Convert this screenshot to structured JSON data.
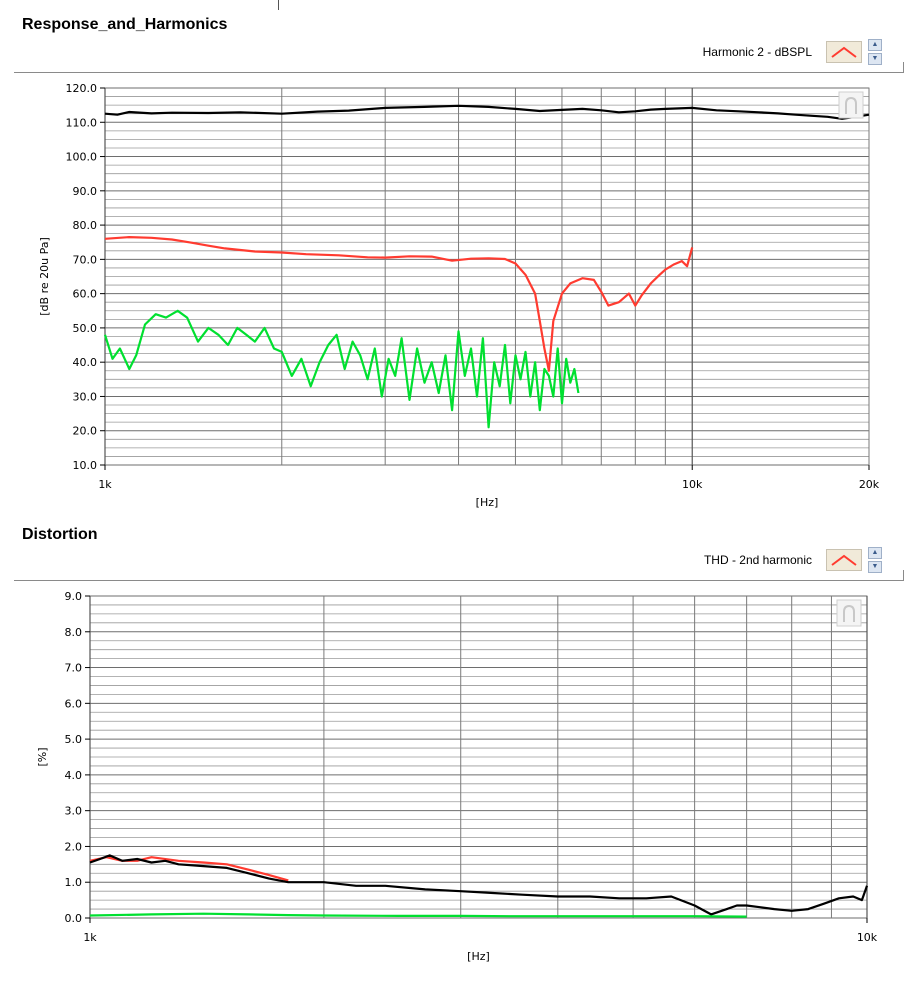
{
  "panels": [
    {
      "title": "Response_and_Harmonics",
      "legend_label": "Harmonic 2 - dBSPL",
      "legend_color": "#ff3b30"
    },
    {
      "title": "Distortion",
      "legend_label": "THD - 2nd harmonic",
      "legend_color": "#ff3b30"
    }
  ],
  "chart_data": [
    {
      "type": "line",
      "xlabel": "[Hz]",
      "ylabel": "[dB re 20u Pa]",
      "xscale": "log",
      "xlim": [
        1000,
        20000
      ],
      "ylim": [
        10,
        120
      ],
      "ytick_labels": [
        "10.0",
        "20.0",
        "30.0",
        "40.0",
        "50.0",
        "60.0",
        "70.0",
        "80.0",
        "90.0",
        "100.0",
        "110.0",
        "120.0"
      ],
      "xtick_labels": [
        "1k",
        "10k",
        "20k"
      ],
      "grid": true,
      "series": [
        {
          "color": "#000000",
          "x": [
            1000,
            1050,
            1100,
            1200,
            1300,
            1500,
            1700,
            2000,
            2300,
            2600,
            3000,
            3500,
            4000,
            4500,
            5000,
            5500,
            6000,
            6500,
            7000,
            7500,
            8000,
            8500,
            9000,
            10000,
            11000,
            12000,
            13000,
            14000,
            15000,
            16000,
            17000,
            18000,
            19000,
            20000
          ],
          "y": [
            112.5,
            112.2,
            113,
            112.6,
            112.8,
            112.7,
            112.9,
            112.5,
            113.1,
            113.4,
            114.2,
            114.5,
            114.8,
            114.5,
            113.9,
            113.3,
            113.6,
            113.9,
            113.5,
            112.9,
            113.2,
            113.7,
            113.9,
            114.2,
            113.5,
            113.2,
            112.9,
            112.6,
            112.2,
            111.9,
            111.6,
            111.0,
            111.6,
            112.2
          ]
        },
        {
          "color": "#ff3b30",
          "x": [
            1000,
            1100,
            1200,
            1300,
            1400,
            1500,
            1600,
            1800,
            2000,
            2200,
            2500,
            2800,
            3000,
            3300,
            3600,
            3900,
            4200,
            4500,
            4800,
            5000,
            5200,
            5400,
            5500,
            5600,
            5700,
            5800,
            6000,
            6200,
            6500,
            6800,
            7000,
            7200,
            7500,
            7800,
            8000,
            8200,
            8500,
            8800,
            9000,
            9300,
            9600,
            9800,
            10000
          ],
          "y": [
            76,
            76.5,
            76.3,
            75.8,
            74.9,
            74,
            73.2,
            72.3,
            72,
            71.5,
            71.2,
            70.6,
            70.5,
            70.9,
            70.8,
            69.6,
            70.2,
            70.3,
            70.1,
            68.8,
            65.5,
            60.0,
            52.0,
            44.0,
            37.5,
            52.0,
            60.0,
            63.0,
            64.5,
            64.0,
            60.5,
            56.5,
            57.5,
            60.0,
            56.5,
            59.5,
            63.0,
            65.5,
            67.0,
            68.5,
            69.5,
            68.0,
            73.5
          ]
        },
        {
          "color": "#00e030",
          "x": [
            1000,
            1030,
            1060,
            1100,
            1130,
            1170,
            1220,
            1270,
            1330,
            1380,
            1440,
            1500,
            1560,
            1620,
            1680,
            1740,
            1800,
            1870,
            1940,
            2000,
            2080,
            2160,
            2240,
            2320,
            2400,
            2480,
            2560,
            2640,
            2720,
            2800,
            2880,
            2960,
            3040,
            3120,
            3200,
            3300,
            3400,
            3500,
            3600,
            3700,
            3800,
            3900,
            4000,
            4100,
            4200,
            4300,
            4400,
            4500,
            4600,
            4700,
            4800,
            4900,
            5000,
            5100,
            5200,
            5300,
            5400,
            5500,
            5600,
            5700,
            5800,
            5900,
            6000,
            6100,
            6200,
            6300,
            6400
          ],
          "y": [
            48,
            41,
            44,
            38,
            42,
            51,
            54,
            53,
            55,
            53,
            46,
            50,
            48,
            45,
            50,
            48,
            46,
            50,
            44,
            43,
            36,
            41,
            33,
            40,
            45,
            48,
            38,
            46,
            42,
            35,
            44,
            30,
            41,
            36,
            47,
            29,
            44,
            34,
            40,
            31,
            42,
            26,
            49,
            36,
            44,
            30,
            47,
            21,
            40,
            33,
            45,
            28,
            42,
            35,
            43,
            30,
            40,
            26,
            38,
            36,
            30,
            44,
            28,
            41,
            34,
            38,
            31
          ]
        }
      ]
    },
    {
      "type": "line",
      "xlabel": "[Hz]",
      "ylabel": "[%]",
      "xscale": "log",
      "xlim": [
        1000,
        10000
      ],
      "ylim": [
        0,
        9
      ],
      "ytick_labels": [
        "0.0",
        "1.0",
        "2.0",
        "3.0",
        "4.0",
        "5.0",
        "6.0",
        "7.0",
        "8.0",
        "9.0"
      ],
      "xtick_labels": [
        "1k",
        "10k"
      ],
      "grid": true,
      "series": [
        {
          "color": "#ff3b30",
          "x": [
            1000,
            1050,
            1100,
            1150,
            1200,
            1300,
            1400,
            1500,
            1600,
            1700,
            1800
          ],
          "y": [
            1.6,
            1.7,
            1.6,
            1.6,
            1.7,
            1.6,
            1.55,
            1.5,
            1.35,
            1.2,
            1.05
          ]
        },
        {
          "color": "#000000",
          "x": [
            1000,
            1030,
            1060,
            1100,
            1150,
            1200,
            1250,
            1300,
            1400,
            1500,
            1600,
            1700,
            1800,
            2000,
            2200,
            2400,
            2700,
            3000,
            3300,
            3600,
            4000,
            4400,
            4800,
            5200,
            5600,
            6000,
            6300,
            6600,
            6800,
            7000,
            7300,
            7600,
            8000,
            8400,
            8800,
            9200,
            9600,
            9850,
            10000
          ],
          "y": [
            1.55,
            1.65,
            1.75,
            1.6,
            1.65,
            1.55,
            1.6,
            1.5,
            1.45,
            1.4,
            1.25,
            1.1,
            1.0,
            1.0,
            0.9,
            0.9,
            0.8,
            0.75,
            0.7,
            0.65,
            0.6,
            0.6,
            0.55,
            0.55,
            0.6,
            0.35,
            0.1,
            0.25,
            0.35,
            0.35,
            0.3,
            0.25,
            0.2,
            0.25,
            0.4,
            0.55,
            0.6,
            0.5,
            0.9
          ]
        },
        {
          "color": "#00e030",
          "x": [
            1000,
            1200,
            1400,
            1600,
            1800,
            2000,
            2500,
            3000,
            3500,
            4000,
            5000,
            6000,
            7000
          ],
          "y": [
            0.07,
            0.1,
            0.12,
            0.1,
            0.08,
            0.07,
            0.06,
            0.06,
            0.05,
            0.05,
            0.05,
            0.05,
            0.04
          ]
        }
      ]
    }
  ]
}
